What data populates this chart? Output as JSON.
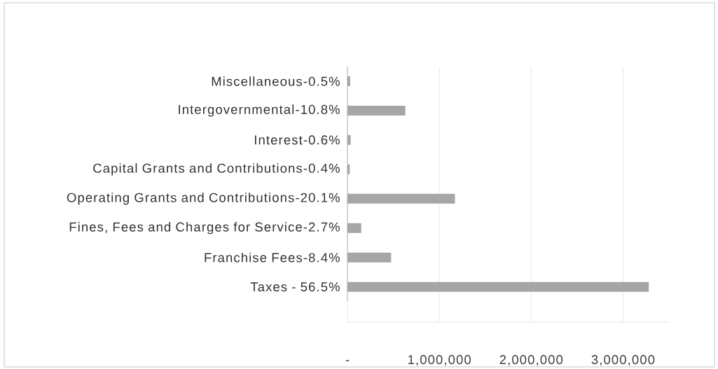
{
  "chart_data": {
    "type": "bar",
    "orientation": "horizontal",
    "categories": [
      "Miscellaneous-0.5%",
      "Intergovernmental-10.8%",
      "Interest-0.6%",
      "Capital Grants and Contributions-0.4%",
      "Operating Grants and Contributions-20.1%",
      "Fines, Fees and Charges for Service-2.7%",
      "Franchise Fees-8.4%",
      "Taxes - 56.5%"
    ],
    "values": [
      30000,
      630000,
      35000,
      25000,
      1170000,
      150000,
      475000,
      3280000
    ],
    "color": "#a6a6a6",
    "xlim": [
      0,
      3500000
    ],
    "xticks": [
      {
        "value": 0,
        "label": "-"
      },
      {
        "value": 1000000,
        "label": "1,000,000"
      },
      {
        "value": 2000000,
        "label": "2,000,000"
      },
      {
        "value": 3000000,
        "label": "3,000,000"
      }
    ],
    "grid": "x"
  }
}
